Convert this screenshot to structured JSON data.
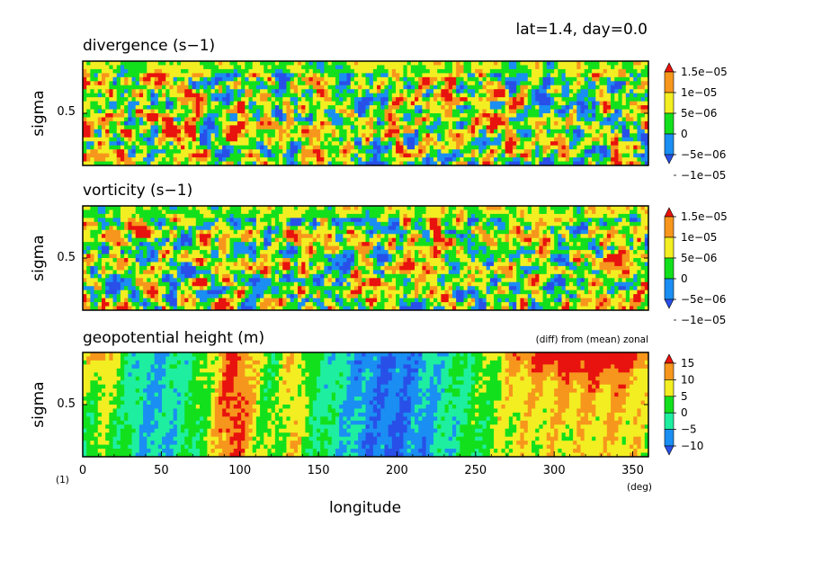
{
  "header": {
    "info": "lat=1.4, day=0.0"
  },
  "colors": {
    "red": "#e8120e",
    "orange": "#f7961c",
    "yellow": "#f2ee22",
    "green": "#13e01c",
    "cyan": "#1eeea0",
    "lightblue": "#1a8ef2",
    "blue": "#2850e8",
    "frame": "#000000"
  },
  "xaxis": {
    "label": "longitude",
    "unit": "(deg)",
    "corner_note": "(1)",
    "ticks": [
      "0",
      "50",
      "100",
      "150",
      "200",
      "250",
      "300",
      "350"
    ]
  },
  "chart_data": [
    {
      "type": "heatmap",
      "title": "divergence (s−1)",
      "ylabel": "sigma",
      "yticks": [
        "0.5"
      ],
      "xlim": [
        0,
        360
      ],
      "ylim": [
        1,
        0
      ],
      "levels": [
        "1.5e−05",
        "1e−05",
        "5e−06",
        "0",
        "−5e−06",
        "−1e−05"
      ],
      "palette": [
        "blue",
        "lightblue",
        "green",
        "yellow",
        "orange",
        "red"
      ],
      "pattern": "small-scale noisy field"
    },
    {
      "type": "heatmap",
      "title": "vorticity (s−1)",
      "ylabel": "sigma",
      "yticks": [
        "0.5"
      ],
      "xlim": [
        0,
        360
      ],
      "ylim": [
        1,
        0
      ],
      "levels": [
        "1.5e−05",
        "1e−05",
        "5e−06",
        "0",
        "−5e−06",
        "−1e−05"
      ],
      "palette": [
        "blue",
        "lightblue",
        "green",
        "yellow",
        "orange",
        "red"
      ],
      "pattern": "small-scale noisy field"
    },
    {
      "type": "heatmap",
      "title": "geopotential height (m)",
      "subtitle": "(diff) from (mean) zonal",
      "ylabel": "sigma",
      "yticks": [
        "0.5"
      ],
      "xlim": [
        0,
        360
      ],
      "ylim": [
        1,
        0
      ],
      "levels": [
        "15",
        "10",
        "5",
        "0",
        "−5",
        "−10"
      ],
      "palette": [
        "blue",
        "lightblue",
        "cyan",
        "green",
        "yellow",
        "orange",
        "red"
      ],
      "features": [
        {
          "lon_range": [
            75,
            115
          ],
          "value": "positive > 15"
        },
        {
          "lon_range": [
            125,
            145
          ],
          "value": "positive ~10"
        },
        {
          "lon_range": [
            145,
            250
          ],
          "value": "negative < -10"
        },
        {
          "lon_range": [
            260,
            360
          ],
          "value": "positive > 15 near top"
        },
        {
          "lon_range": [
            20,
            70
          ],
          "value": "negative ~ -5 to -10"
        }
      ]
    }
  ]
}
